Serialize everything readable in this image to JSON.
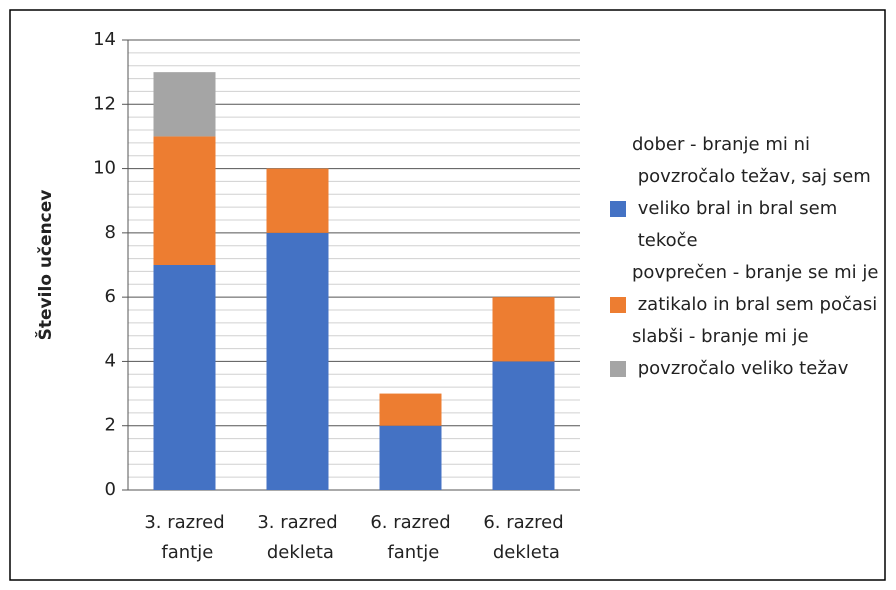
{
  "chart_data": {
    "type": "stacked_bar",
    "y_label": "Število učencev",
    "categories": [
      "3. razred fantje",
      "3. razred dekleta",
      "6. razred fantje",
      "6. razred dekleta"
    ],
    "series": [
      {
        "name": "dober - branje mi ni povzročalo težav, saj sem veliko bral in bral sem tekoče",
        "color": "#4472c4",
        "values": [
          7,
          8,
          2,
          4
        ]
      },
      {
        "name": "povprečen - branje se mi je zatikalo in bral sem počasi",
        "color": "#ed7d31",
        "values": [
          4,
          2,
          1,
          2
        ]
      },
      {
        "name": "slabši - branje mi je povzročalo veliko težav",
        "color": "#a5a5a5",
        "values": [
          2,
          0,
          0,
          0
        ]
      }
    ],
    "ylim": [
      0,
      14
    ],
    "yticks": [
      0,
      2,
      4,
      6,
      8,
      10,
      12,
      14
    ],
    "grid": true,
    "minor_grid": true,
    "legend": "right"
  }
}
